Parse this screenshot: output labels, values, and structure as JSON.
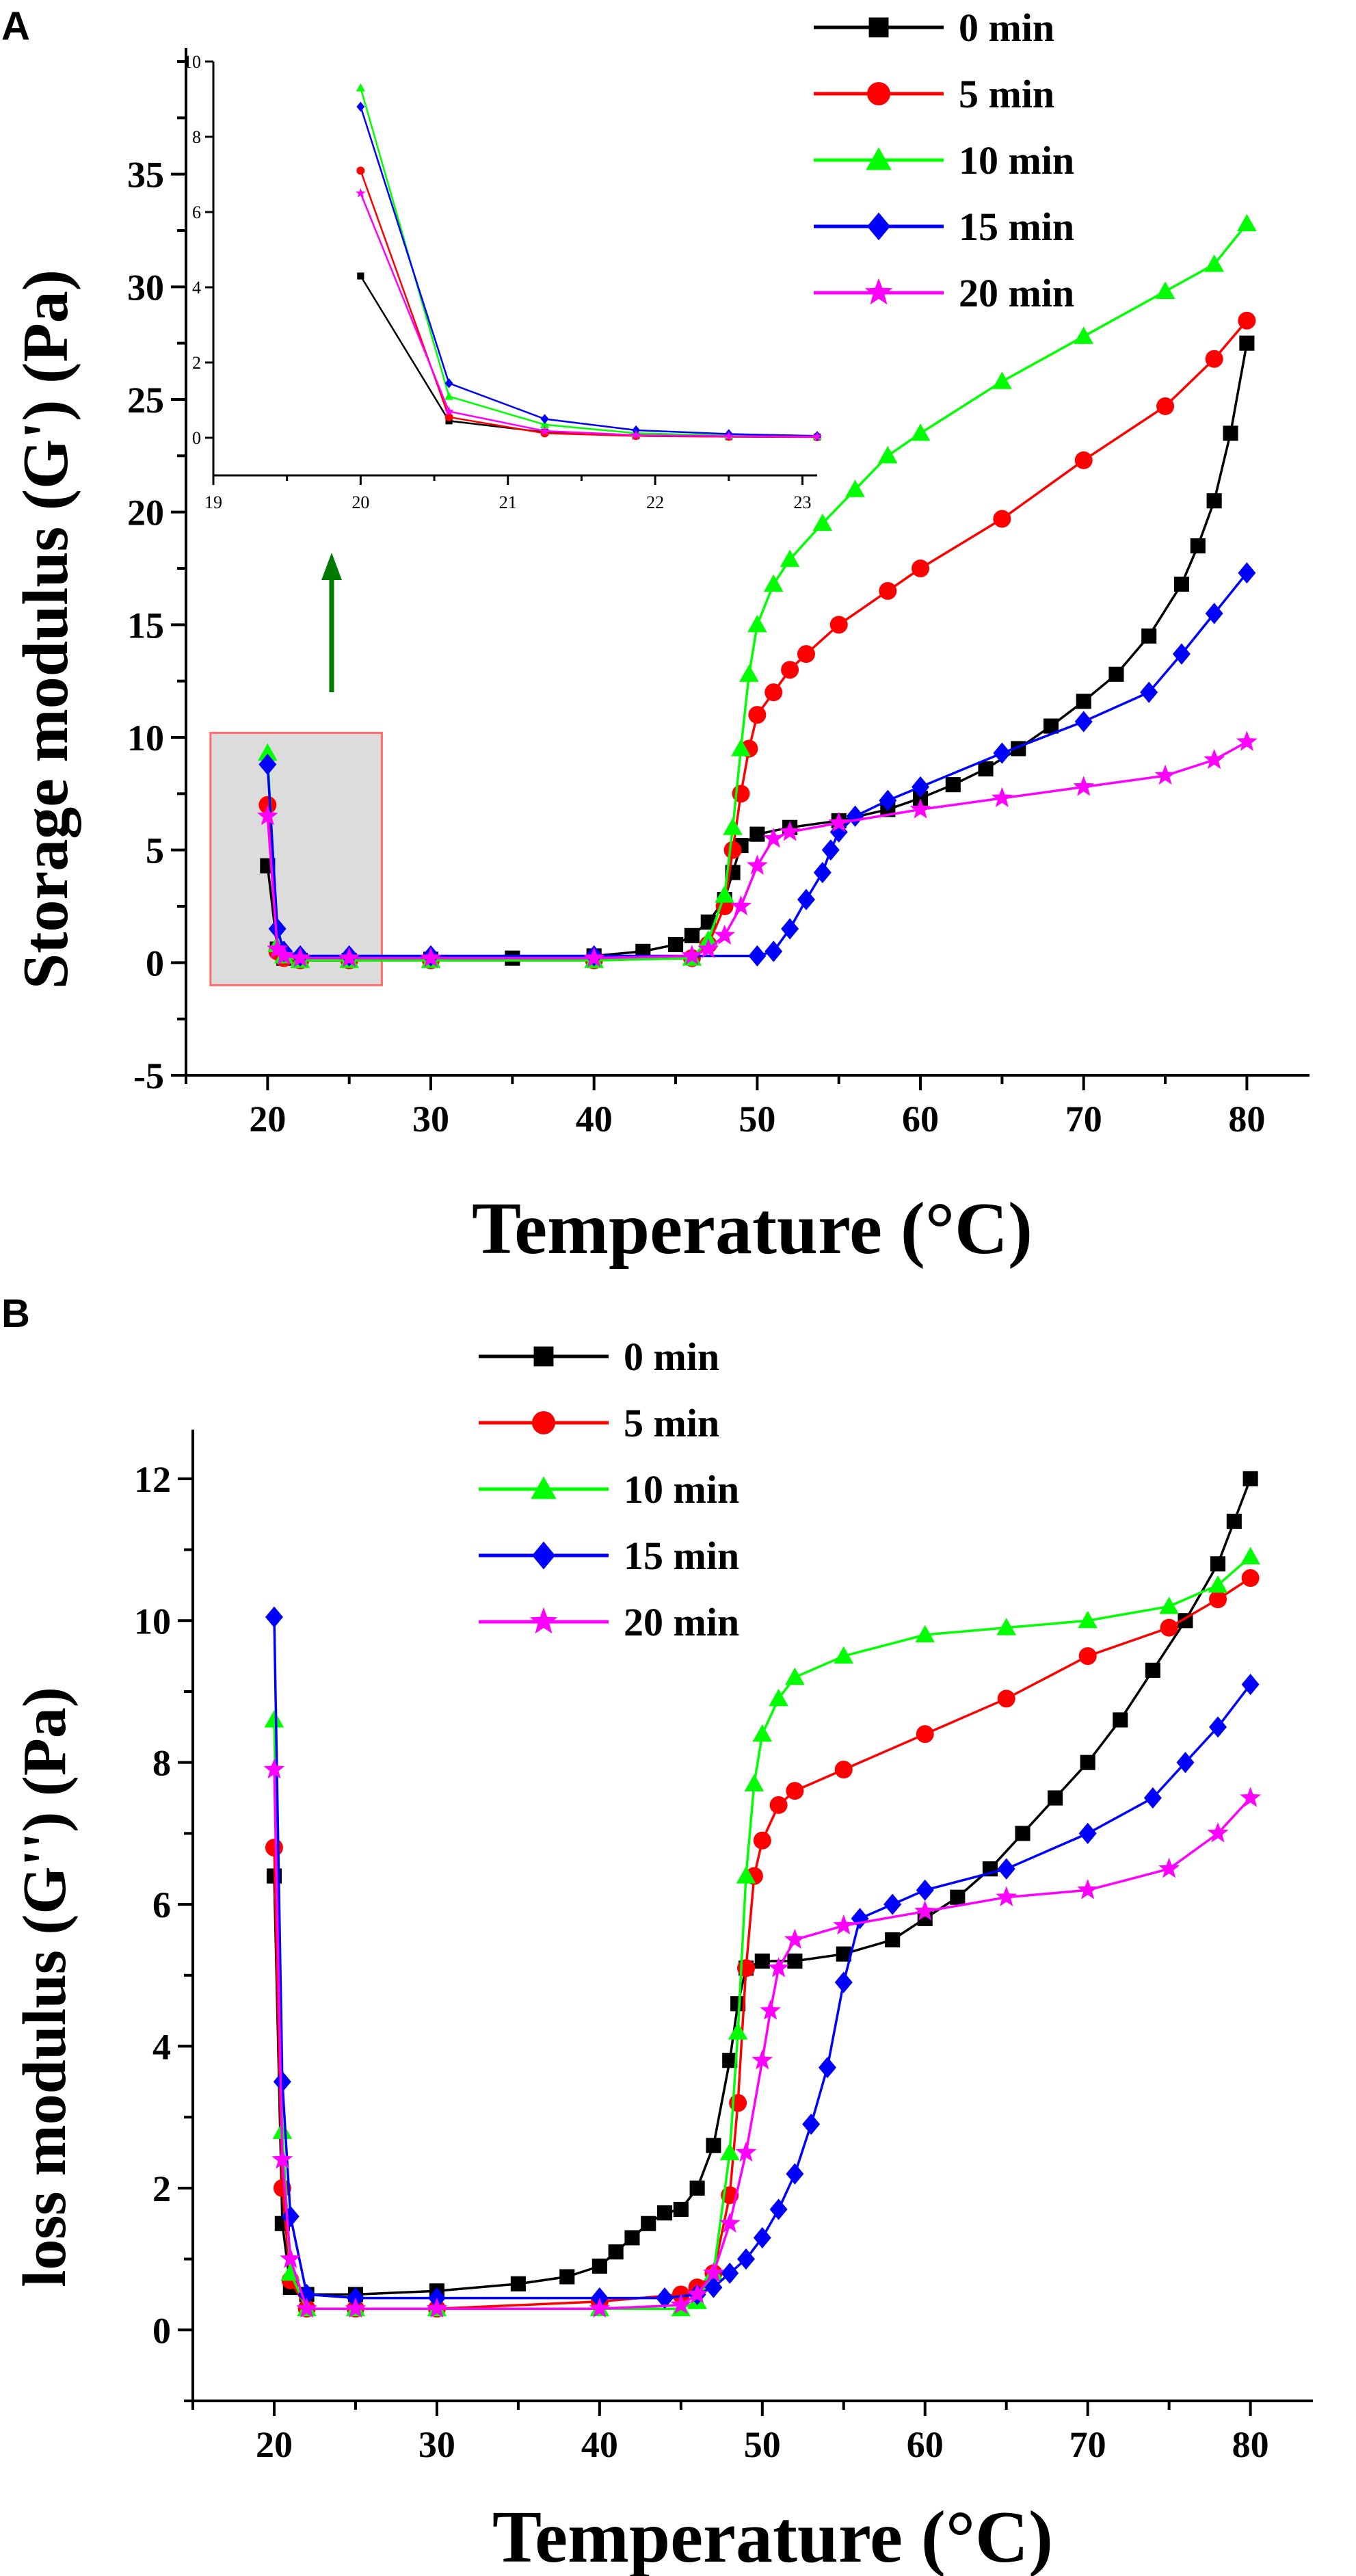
{
  "chart_data": [
    {
      "panel_label": "A",
      "type": "line",
      "xlabel": "Temperature (°C)",
      "ylabel": "Storage modulus (G') (Pa)",
      "xlim": [
        15,
        83
      ],
      "ylim": [
        -5,
        40
      ],
      "xticks": [
        20,
        30,
        40,
        50,
        60,
        70,
        80
      ],
      "yticks": [
        -5,
        0,
        5,
        10,
        15,
        20,
        25,
        30,
        35
      ],
      "legend_position": "top-right",
      "series": [
        {
          "name": "0 min",
          "color": "#000000",
          "marker": "square",
          "x": [
            20,
            20.6,
            21,
            22,
            25,
            30,
            35,
            40,
            43,
            45,
            46,
            47,
            48,
            48.5,
            49,
            50,
            52,
            55,
            58,
            60,
            62,
            64,
            66,
            68,
            70,
            72,
            74,
            76,
            77,
            78,
            79,
            80
          ],
          "y": [
            4.3,
            0.6,
            0.2,
            0.1,
            0.1,
            0.15,
            0.2,
            0.3,
            0.5,
            0.8,
            1.2,
            1.8,
            2.8,
            4.0,
            5.2,
            5.7,
            6.0,
            6.3,
            6.8,
            7.3,
            7.9,
            8.6,
            9.5,
            10.5,
            11.6,
            12.8,
            14.5,
            16.8,
            18.5,
            20.5,
            23.5,
            27.5
          ]
        },
        {
          "name": "5 min",
          "color": "#ff0000",
          "marker": "circle",
          "x": [
            20,
            20.6,
            21,
            22,
            25,
            30,
            40,
            46,
            47,
            48,
            48.5,
            49,
            49.5,
            50,
            51,
            52,
            53,
            55,
            58,
            60,
            65,
            70,
            75,
            78,
            80
          ],
          "y": [
            7.0,
            0.5,
            0.2,
            0.1,
            0.1,
            0.1,
            0.1,
            0.2,
            0.8,
            2.5,
            5.0,
            7.5,
            9.5,
            11.0,
            12.0,
            13.0,
            13.7,
            15.0,
            16.5,
            17.5,
            19.7,
            22.3,
            24.7,
            26.8,
            28.5
          ]
        },
        {
          "name": "10 min",
          "color": "#00ff00",
          "marker": "triangle",
          "x": [
            20,
            20.6,
            21,
            22,
            25,
            30,
            40,
            46,
            47,
            48,
            48.5,
            49,
            49.5,
            50,
            51,
            52,
            54,
            56,
            58,
            60,
            65,
            70,
            75,
            78,
            80
          ],
          "y": [
            9.3,
            0.8,
            0.3,
            0.1,
            0.1,
            0.1,
            0.1,
            0.2,
            1.0,
            3.0,
            6.0,
            9.5,
            12.8,
            15.0,
            16.8,
            17.9,
            19.5,
            21.0,
            22.5,
            23.5,
            25.8,
            27.8,
            29.8,
            31.0,
            32.8
          ]
        },
        {
          "name": "15 min",
          "color": "#0000ff",
          "marker": "diamond",
          "x": [
            20,
            20.6,
            21,
            22,
            25,
            30,
            40,
            50,
            51,
            52,
            53,
            54,
            54.5,
            55,
            56,
            58,
            60,
            65,
            70,
            74,
            76,
            78,
            80
          ],
          "y": [
            8.8,
            1.5,
            0.5,
            0.3,
            0.3,
            0.3,
            0.3,
            0.3,
            0.5,
            1.5,
            2.8,
            4.0,
            5.0,
            5.8,
            6.5,
            7.2,
            7.8,
            9.3,
            10.7,
            12.0,
            13.7,
            15.5,
            17.3
          ]
        },
        {
          "name": "20 min",
          "color": "#ff00ff",
          "marker": "star",
          "x": [
            20,
            20.6,
            21,
            22,
            25,
            30,
            40,
            46,
            47,
            48,
            49,
            50,
            51,
            52,
            55,
            60,
            65,
            70,
            75,
            78,
            80
          ],
          "y": [
            6.5,
            0.6,
            0.3,
            0.2,
            0.2,
            0.2,
            0.2,
            0.3,
            0.6,
            1.2,
            2.5,
            4.3,
            5.5,
            5.8,
            6.2,
            6.8,
            7.3,
            7.8,
            8.3,
            9.0,
            9.8
          ]
        }
      ],
      "inset": {
        "xlim": [
          19,
          23.1
        ],
        "ylim": [
          -1,
          10
        ],
        "xticks": [
          19,
          20,
          21,
          22,
          23
        ],
        "yticks": [
          0,
          2,
          4,
          6,
          8,
          10
        ],
        "x": [
          20,
          20.6,
          21.25,
          21.87,
          22.5,
          23.1
        ],
        "series": [
          {
            "name": "0 min",
            "color": "#000000",
            "y": [
              4.3,
              0.45,
              0.15,
              0.05,
              0.03,
              0.02
            ]
          },
          {
            "name": "5 min",
            "color": "#ff0000",
            "y": [
              7.1,
              0.55,
              0.12,
              0.05,
              0.03,
              0.02
            ]
          },
          {
            "name": "10 min",
            "color": "#00ff00",
            "y": [
              9.3,
              1.1,
              0.35,
              0.12,
              0.06,
              0.04
            ]
          },
          {
            "name": "15 min",
            "color": "#0000ff",
            "y": [
              8.8,
              1.45,
              0.5,
              0.2,
              0.1,
              0.05
            ]
          },
          {
            "name": "20 min",
            "color": "#ff00ff",
            "y": [
              6.5,
              0.7,
              0.18,
              0.07,
              0.04,
              0.03
            ]
          }
        ]
      },
      "highlight_region": {
        "x": [
          16.5,
          27
        ],
        "y": [
          -1,
          10.2
        ]
      }
    },
    {
      "panel_label": "B",
      "type": "line",
      "xlabel": "Temperature (°C)",
      "ylabel": "loss modulus (G'') (Pa)",
      "xlim": [
        15,
        83
      ],
      "ylim": [
        -1,
        12.5
      ],
      "xticks": [
        20,
        30,
        40,
        50,
        60,
        70,
        80
      ],
      "yticks": [
        0,
        2,
        4,
        6,
        8,
        10,
        12
      ],
      "legend_position": "top-left",
      "series": [
        {
          "name": "0 min",
          "color": "#000000",
          "marker": "square",
          "x": [
            20,
            20.5,
            21,
            22,
            25,
            30,
            35,
            38,
            40,
            41,
            42,
            43,
            44,
            45,
            46,
            47,
            48,
            48.5,
            49,
            50,
            52,
            55,
            58,
            60,
            62,
            64,
            66,
            68,
            70,
            72,
            74,
            76,
            78,
            79,
            80
          ],
          "y": [
            6.4,
            1.5,
            0.6,
            0.5,
            0.5,
            0.55,
            0.65,
            0.75,
            0.9,
            1.1,
            1.3,
            1.5,
            1.65,
            1.7,
            2.0,
            2.6,
            3.8,
            4.6,
            5.1,
            5.2,
            5.2,
            5.3,
            5.5,
            5.8,
            6.1,
            6.5,
            7.0,
            7.5,
            8.0,
            8.6,
            9.3,
            10.0,
            10.8,
            11.4,
            12.0
          ]
        },
        {
          "name": "5 min",
          "color": "#ff0000",
          "marker": "circle",
          "x": [
            20,
            20.5,
            21,
            22,
            25,
            30,
            40,
            45,
            46,
            47,
            48,
            48.5,
            49,
            49.5,
            50,
            51,
            52,
            55,
            60,
            65,
            70,
            75,
            78,
            80
          ],
          "y": [
            6.8,
            2.0,
            0.7,
            0.3,
            0.3,
            0.3,
            0.4,
            0.5,
            0.6,
            0.8,
            1.9,
            3.2,
            5.1,
            6.4,
            6.9,
            7.4,
            7.6,
            7.9,
            8.4,
            8.9,
            9.5,
            9.9,
            10.3,
            10.6
          ]
        },
        {
          "name": "10 min",
          "color": "#00ff00",
          "marker": "triangle",
          "x": [
            20,
            20.5,
            21,
            22,
            25,
            30,
            40,
            45,
            46,
            47,
            48,
            48.5,
            49,
            49.5,
            50,
            51,
            52,
            55,
            60,
            65,
            70,
            75,
            78,
            80
          ],
          "y": [
            8.6,
            2.8,
            0.8,
            0.3,
            0.3,
            0.3,
            0.3,
            0.3,
            0.4,
            0.8,
            2.5,
            4.2,
            6.4,
            7.7,
            8.4,
            8.9,
            9.2,
            9.5,
            9.8,
            9.9,
            10.0,
            10.2,
            10.5,
            10.9
          ]
        },
        {
          "name": "15 min",
          "color": "#0000ff",
          "marker": "diamond",
          "x": [
            20,
            20.5,
            21,
            22,
            25,
            30,
            40,
            44,
            46,
            47,
            48,
            49,
            50,
            51,
            52,
            53,
            54,
            55,
            56,
            58,
            60,
            65,
            70,
            74,
            76,
            78,
            80
          ],
          "y": [
            10.05,
            3.5,
            1.6,
            0.5,
            0.45,
            0.45,
            0.45,
            0.45,
            0.5,
            0.6,
            0.8,
            1.0,
            1.3,
            1.7,
            2.2,
            2.9,
            3.7,
            4.9,
            5.8,
            6.0,
            6.2,
            6.5,
            7.0,
            7.5,
            8.0,
            8.5,
            9.1
          ]
        },
        {
          "name": "20 min",
          "color": "#ff00ff",
          "marker": "star",
          "x": [
            20,
            20.5,
            21,
            22,
            25,
            30,
            40,
            45,
            46,
            47,
            48,
            49,
            50,
            50.5,
            51,
            52,
            55,
            60,
            65,
            70,
            75,
            78,
            80
          ],
          "y": [
            7.9,
            2.4,
            1.0,
            0.3,
            0.3,
            0.3,
            0.3,
            0.35,
            0.5,
            0.8,
            1.5,
            2.5,
            3.8,
            4.5,
            5.1,
            5.5,
            5.7,
            5.9,
            6.1,
            6.2,
            6.5,
            7.0,
            7.5
          ]
        }
      ]
    }
  ]
}
